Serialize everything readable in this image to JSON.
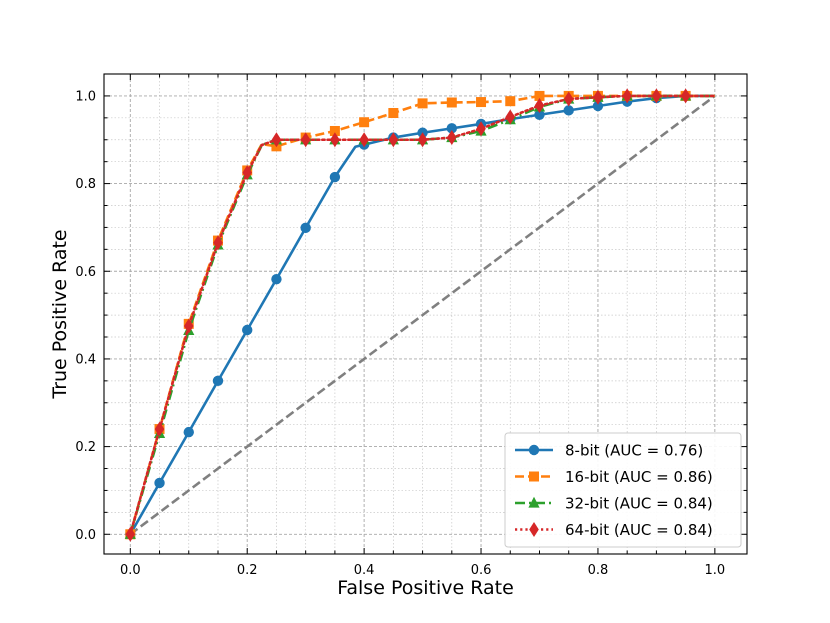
{
  "chart_data": {
    "type": "line",
    "title": "",
    "xlabel": "False Positive Rate",
    "ylabel": "True Positive Rate",
    "xlim": [
      -0.045,
      1.055
    ],
    "ylim": [
      -0.045,
      1.05
    ],
    "xticks": [
      0.0,
      0.2,
      0.4,
      0.6,
      0.8,
      1.0
    ],
    "yticks": [
      0.0,
      0.2,
      0.4,
      0.6,
      0.8,
      1.0
    ],
    "xtick_labels": [
      "0.0",
      "0.2",
      "0.4",
      "0.6",
      "0.8",
      "1.0"
    ],
    "ytick_labels": [
      "0.0",
      "0.2",
      "0.4",
      "0.6",
      "0.8",
      "1.0"
    ],
    "grid": true,
    "minor_grid": true,
    "legend_position": "lower-right",
    "diagonal": {
      "x": [
        0,
        1
      ],
      "y": [
        0,
        1
      ],
      "color": "#808080",
      "style": "dashed"
    },
    "series": [
      {
        "name": "8-bit (AUC = 0.76)",
        "color": "#1f77b4",
        "line_style": "solid",
        "marker": "circle",
        "line": {
          "x": [
            0,
            0.05,
            0.1,
            0.15,
            0.2,
            0.25,
            0.3,
            0.35,
            0.385,
            0.4,
            0.45,
            0.5,
            0.55,
            0.6,
            0.65,
            0.7,
            0.75,
            0.8,
            0.85,
            0.9,
            0.95,
            1.0
          ],
          "y": [
            0,
            0.117,
            0.233,
            0.35,
            0.466,
            0.582,
            0.699,
            0.815,
            0.884,
            0.889,
            0.905,
            0.916,
            0.926,
            0.936,
            0.947,
            0.957,
            0.967,
            0.977,
            0.987,
            0.995,
            1.0,
            1.0
          ]
        },
        "markers": {
          "x": [
            0,
            0.05,
            0.1,
            0.15,
            0.2,
            0.25,
            0.3,
            0.35,
            0.4,
            0.45,
            0.5,
            0.55,
            0.6,
            0.65,
            0.7,
            0.75,
            0.8,
            0.85,
            0.9,
            0.95
          ],
          "y": [
            0,
            0.117,
            0.233,
            0.35,
            0.466,
            0.582,
            0.699,
            0.815,
            0.889,
            0.905,
            0.916,
            0.926,
            0.936,
            0.947,
            0.957,
            0.967,
            0.977,
            0.987,
            0.995,
            1.0
          ]
        }
      },
      {
        "name": "16-bit (AUC = 0.86)",
        "color": "#ff7f0e",
        "line_style": "dashed",
        "marker": "square",
        "line": {
          "x": [
            0,
            0.05,
            0.1,
            0.15,
            0.2,
            0.225,
            0.25,
            0.3,
            0.35,
            0.4,
            0.45,
            0.5,
            0.55,
            0.6,
            0.65,
            0.7,
            0.75,
            0.8,
            0.85,
            0.9,
            0.95,
            1.0
          ],
          "y": [
            0,
            0.24,
            0.48,
            0.67,
            0.83,
            0.89,
            0.885,
            0.905,
            0.92,
            0.94,
            0.961,
            0.983,
            0.985,
            0.986,
            0.988,
            1.0,
            1.0,
            1.0,
            1.0,
            1.0,
            1.0,
            1.0
          ]
        },
        "markers": {
          "x": [
            0,
            0.05,
            0.1,
            0.15,
            0.2,
            0.25,
            0.3,
            0.35,
            0.4,
            0.45,
            0.5,
            0.55,
            0.6,
            0.65,
            0.7,
            0.75,
            0.8,
            0.85,
            0.9,
            0.95
          ],
          "y": [
            0,
            0.24,
            0.48,
            0.67,
            0.83,
            0.885,
            0.905,
            0.92,
            0.94,
            0.961,
            0.983,
            0.985,
            0.986,
            0.988,
            1.0,
            1.0,
            1.0,
            1.0,
            1.0,
            1.0
          ]
        }
      },
      {
        "name": "32-bit (AUC = 0.84)",
        "color": "#2ca02c",
        "line_style": "dashdot",
        "marker": "triangle",
        "line": {
          "x": [
            0,
            0.05,
            0.1,
            0.15,
            0.2,
            0.225,
            0.25,
            0.3,
            0.35,
            0.4,
            0.45,
            0.5,
            0.55,
            0.6,
            0.65,
            0.7,
            0.75,
            0.8,
            0.85,
            0.9,
            0.95,
            1.0
          ],
          "y": [
            0,
            0.23,
            0.465,
            0.66,
            0.82,
            0.888,
            0.9,
            0.9,
            0.9,
            0.9,
            0.9,
            0.9,
            0.905,
            0.92,
            0.946,
            0.975,
            0.993,
            0.997,
            1.0,
            1.0,
            1.0,
            1.0
          ]
        },
        "markers": {
          "x": [
            0,
            0.05,
            0.1,
            0.15,
            0.2,
            0.25,
            0.3,
            0.35,
            0.4,
            0.45,
            0.5,
            0.55,
            0.6,
            0.65,
            0.7,
            0.75,
            0.8,
            0.85,
            0.9,
            0.95
          ],
          "y": [
            0,
            0.23,
            0.465,
            0.66,
            0.82,
            0.9,
            0.9,
            0.9,
            0.9,
            0.9,
            0.9,
            0.905,
            0.92,
            0.946,
            0.975,
            0.993,
            0.997,
            1.0,
            1.0,
            1.0
          ]
        }
      },
      {
        "name": "64-bit (AUC = 0.84)",
        "color": "#d62728",
        "line_style": "dotted",
        "marker": "diamond",
        "line": {
          "x": [
            0,
            0.05,
            0.1,
            0.15,
            0.2,
            0.225,
            0.25,
            0.3,
            0.35,
            0.4,
            0.45,
            0.5,
            0.55,
            0.6,
            0.65,
            0.7,
            0.75,
            0.8,
            0.85,
            0.9,
            0.95,
            1.0
          ],
          "y": [
            0,
            0.24,
            0.475,
            0.665,
            0.825,
            0.888,
            0.9,
            0.9,
            0.9,
            0.9,
            0.9,
            0.9,
            0.905,
            0.925,
            0.952,
            0.978,
            0.993,
            0.997,
            1.0,
            1.0,
            1.0,
            1.0
          ]
        },
        "markers": {
          "x": [
            0,
            0.05,
            0.1,
            0.15,
            0.2,
            0.25,
            0.3,
            0.35,
            0.4,
            0.45,
            0.5,
            0.55,
            0.6,
            0.65,
            0.7,
            0.75,
            0.8,
            0.85,
            0.9,
            0.95
          ],
          "y": [
            0,
            0.24,
            0.475,
            0.665,
            0.825,
            0.9,
            0.9,
            0.9,
            0.9,
            0.9,
            0.9,
            0.905,
            0.925,
            0.952,
            0.978,
            0.993,
            0.997,
            1.0,
            1.0,
            1.0
          ]
        }
      }
    ]
  }
}
